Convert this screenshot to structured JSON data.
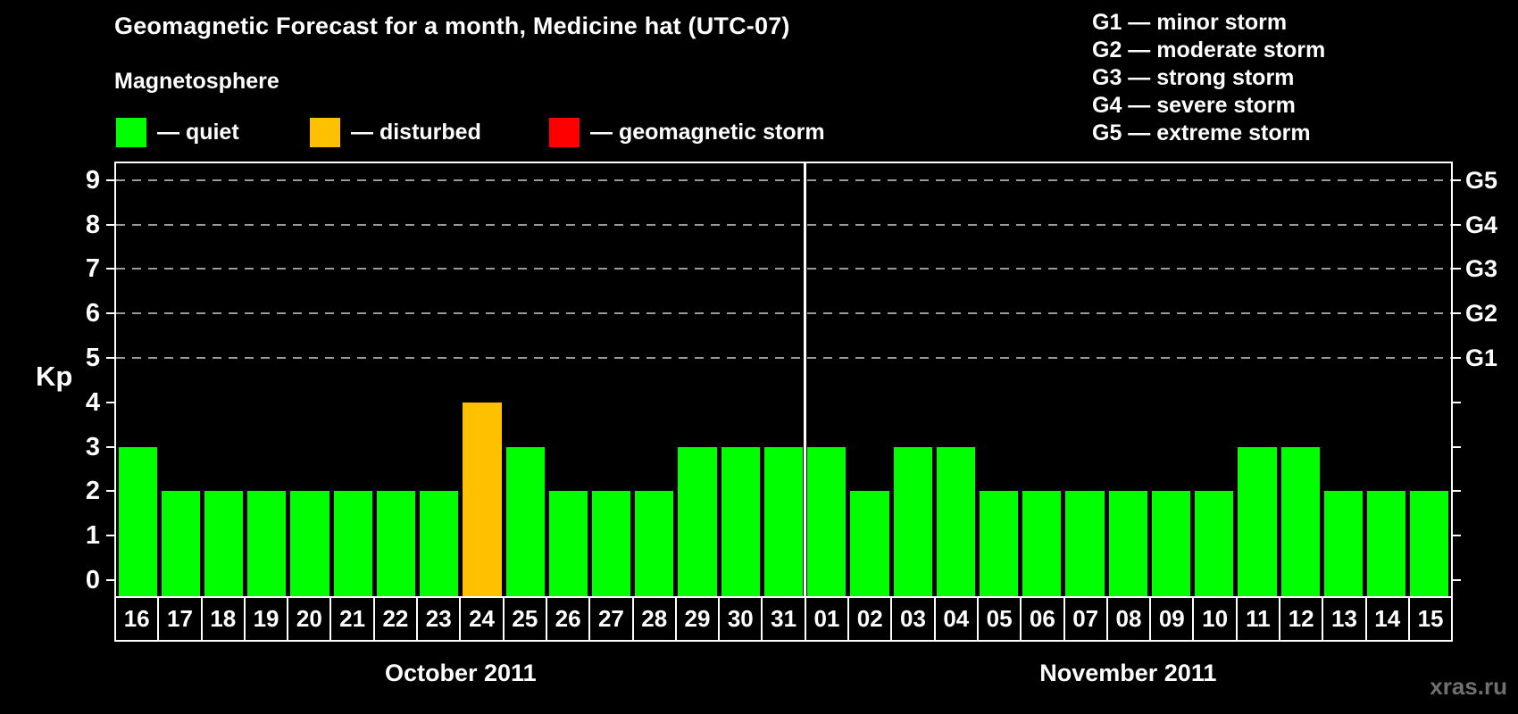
{
  "header": {
    "title": "Geomagnetic Forecast for a month, Medicine hat (UTC-07)",
    "subtitle": "Magnetosphere",
    "separator": "—",
    "legend": [
      {
        "name": "quiet",
        "state": "quiet",
        "color": "#00FF00"
      },
      {
        "name": "disturbed",
        "state": "disturbed",
        "color": "#FFC000"
      },
      {
        "name": "geomagnetic storm",
        "state": "storm",
        "color": "#FF0000"
      }
    ],
    "g_legend": [
      {
        "code": "G1",
        "description": "minor storm"
      },
      {
        "code": "G2",
        "description": "moderate storm"
      },
      {
        "code": "G3",
        "description": "strong storm"
      },
      {
        "code": "G4",
        "description": "severe storm"
      },
      {
        "code": "G5",
        "description": "extreme storm"
      }
    ]
  },
  "watermark": "xras.ru",
  "chart_data": {
    "type": "bar",
    "title": "Geomagnetic Forecast for a month, Medicine hat (UTC-07)",
    "ylabel": "Kp",
    "ylim": [
      0,
      9
    ],
    "y_ticks": [
      0,
      1,
      2,
      3,
      4,
      5,
      6,
      7,
      8,
      9
    ],
    "gridlines_at_kp": [
      5,
      6,
      7,
      8,
      9
    ],
    "grid": "dashed",
    "legend_position": "top-left",
    "right_axis_labels": [
      {
        "code": "G1",
        "kp": 5
      },
      {
        "code": "G2",
        "kp": 6
      },
      {
        "code": "G3",
        "kp": 7
      },
      {
        "code": "G4",
        "kp": 8
      },
      {
        "code": "G5",
        "kp": 9
      }
    ],
    "colors": {
      "quiet": "#00FF00",
      "disturbed": "#FFC000",
      "storm": "#FF0000"
    },
    "months": [
      {
        "label": "October 2011",
        "days": [
          "16",
          "17",
          "18",
          "19",
          "20",
          "21",
          "22",
          "23",
          "24",
          "25",
          "26",
          "27",
          "28",
          "29",
          "30",
          "31"
        ],
        "values": [
          3,
          2,
          2,
          2,
          2,
          2,
          2,
          2,
          4,
          3,
          2,
          2,
          2,
          3,
          3,
          3
        ],
        "states": [
          "quiet",
          "quiet",
          "quiet",
          "quiet",
          "quiet",
          "quiet",
          "quiet",
          "quiet",
          "disturbed",
          "quiet",
          "quiet",
          "quiet",
          "quiet",
          "quiet",
          "quiet",
          "quiet"
        ]
      },
      {
        "label": "November 2011",
        "days": [
          "01",
          "02",
          "03",
          "04",
          "05",
          "06",
          "07",
          "08",
          "09",
          "10",
          "11",
          "12",
          "13",
          "14",
          "15"
        ],
        "values": [
          3,
          2,
          3,
          3,
          2,
          2,
          2,
          2,
          2,
          2,
          3,
          3,
          2,
          2,
          2
        ],
        "states": [
          "quiet",
          "quiet",
          "quiet",
          "quiet",
          "quiet",
          "quiet",
          "quiet",
          "quiet",
          "quiet",
          "quiet",
          "quiet",
          "quiet",
          "quiet",
          "quiet",
          "quiet"
        ]
      }
    ]
  }
}
